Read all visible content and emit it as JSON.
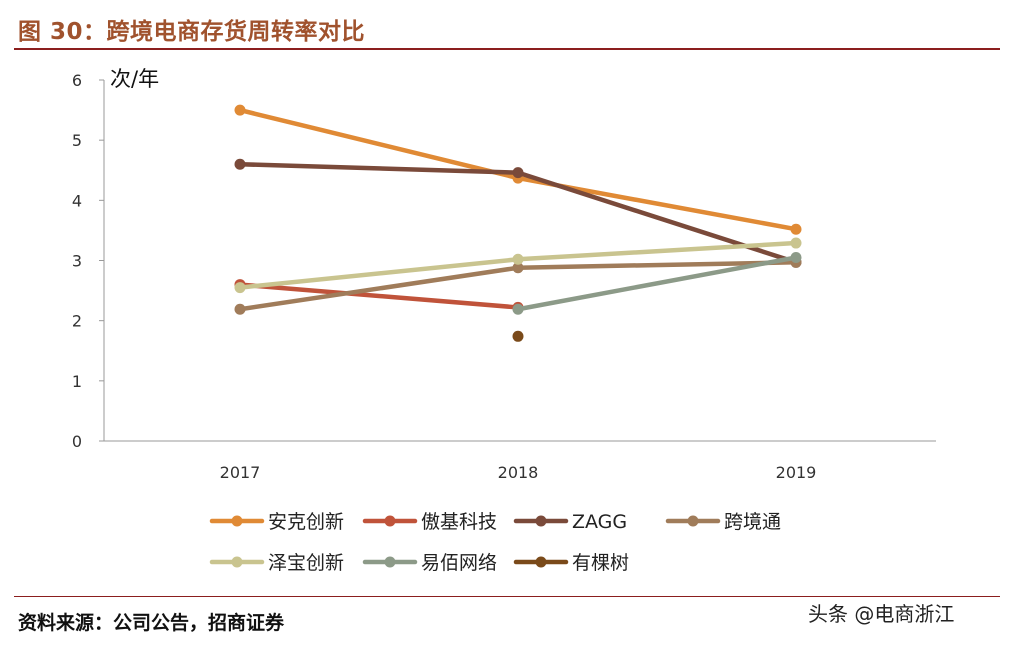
{
  "header": {
    "title": "图 30：跨境电商存货周转率对比"
  },
  "footer": {
    "source": "资料来源：公司公告，招商证券",
    "watermark": "头条 @电商浙江"
  },
  "chart_data": {
    "type": "line",
    "title": "",
    "unit_label": "次/年",
    "categories": [
      "2017",
      "2018",
      "2019"
    ],
    "ylim": [
      0,
      6
    ],
    "yticks": [
      0,
      1,
      2,
      3,
      4,
      5,
      6
    ],
    "grid": false,
    "legend_position": "bottom",
    "series": [
      {
        "name": "安克创新",
        "color": "#e08a35",
        "values": [
          5.5,
          4.37,
          3.52
        ]
      },
      {
        "name": "傲基科技",
        "color": "#c0533a",
        "values": [
          2.6,
          2.22,
          null
        ]
      },
      {
        "name": "ZAGG",
        "color": "#7a4a3a",
        "values": [
          4.6,
          4.46,
          2.97
        ]
      },
      {
        "name": "跨境通",
        "color": "#a07c5a",
        "values": [
          2.19,
          2.88,
          2.97
        ]
      },
      {
        "name": "泽宝创新",
        "color": "#c9c48f",
        "values": [
          2.55,
          3.02,
          3.29
        ]
      },
      {
        "name": "易佰网络",
        "color": "#8c9a88",
        "values": [
          null,
          2.19,
          3.05
        ]
      },
      {
        "name": "有棵树",
        "color": "#7a4a1a",
        "values": [
          null,
          1.74,
          null
        ]
      }
    ]
  }
}
